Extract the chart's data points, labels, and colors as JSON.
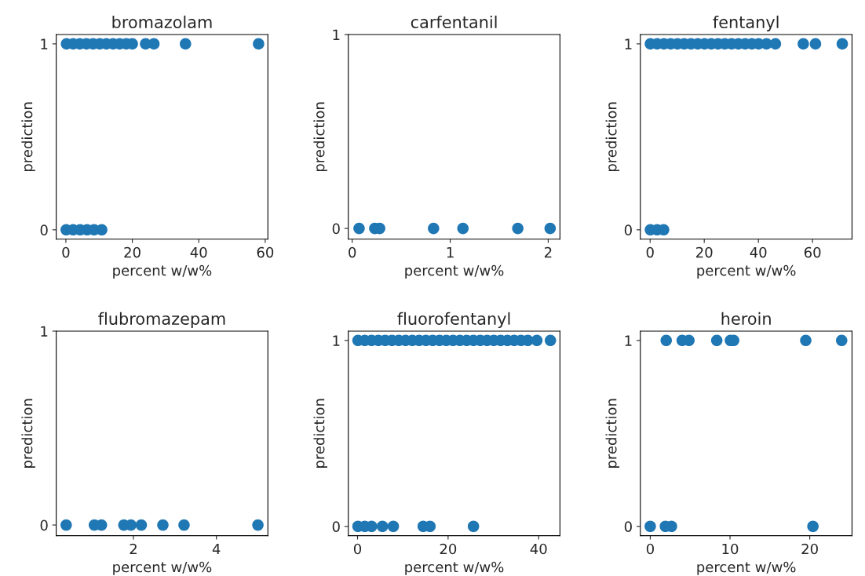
{
  "chart_data": [
    {
      "type": "scatter",
      "title": "bromazolam",
      "xlabel": "percent w/w%",
      "ylabel": "prediction",
      "color": "#1f77b4",
      "marker": "circle",
      "xlim": [
        -2.9,
        60.8
      ],
      "xticks": [
        0,
        20,
        40,
        60
      ],
      "ylim": [
        -0.05,
        1.05
      ],
      "yticks": [
        0,
        1
      ],
      "x": [
        0.2,
        2.2,
        4.2,
        6.2,
        8.2,
        10.2,
        12.2,
        14.2,
        16.2,
        18.2,
        20,
        24,
        26.5,
        36,
        58,
        0.1,
        2.2,
        4.3,
        6.4,
        8.5,
        10.8
      ],
      "values": [
        1,
        1,
        1,
        1,
        1,
        1,
        1,
        1,
        1,
        1,
        1,
        1,
        1,
        1,
        1,
        0,
        0,
        0,
        0,
        0,
        0
      ]
    },
    {
      "type": "scatter",
      "title": "carfentanil",
      "xlabel": "percent w/w%",
      "ylabel": "prediction",
      "color": "#1f77b4",
      "marker": "circle",
      "xlim": [
        -0.04,
        2.12
      ],
      "xticks": [
        0,
        1,
        2
      ],
      "ylim": [
        -0.055,
        1.0
      ],
      "yticks": [
        0,
        1
      ],
      "x": [
        0.07,
        0.23,
        0.28,
        0.83,
        1.13,
        1.69,
        2.02
      ],
      "values": [
        0,
        0,
        0,
        0,
        0,
        0,
        0
      ]
    },
    {
      "type": "scatter",
      "title": "fentanyl",
      "xlabel": "percent w/w%",
      "ylabel": "prediction",
      "color": "#1f77b4",
      "marker": "circle",
      "xlim": [
        -3.6,
        74.6
      ],
      "xticks": [
        0,
        20,
        40,
        60
      ],
      "ylim": [
        -0.05,
        1.05
      ],
      "yticks": [
        0,
        1
      ],
      "x": [
        0.1,
        2.6,
        5.1,
        7.6,
        10.1,
        12.6,
        15.1,
        17.6,
        20.1,
        22.6,
        25.1,
        27.6,
        30.1,
        32.6,
        35.1,
        37.6,
        40.1,
        43,
        46.3,
        56.6,
        61.1,
        71,
        0.1,
        2.6,
        5
      ],
      "values": [
        1,
        1,
        1,
        1,
        1,
        1,
        1,
        1,
        1,
        1,
        1,
        1,
        1,
        1,
        1,
        1,
        1,
        1,
        1,
        1,
        1,
        1,
        0,
        0,
        0
      ]
    },
    {
      "type": "scatter",
      "title": "flubromazepam",
      "xlabel": "percent w/w%",
      "ylabel": "prediction",
      "color": "#1f77b4",
      "marker": "circle",
      "xlim": [
        0.14,
        5.24
      ],
      "xticks": [
        2,
        4
      ],
      "ylim": [
        -0.055,
        1.0
      ],
      "yticks": [
        0,
        1
      ],
      "x": [
        0.38,
        1.06,
        1.23,
        1.77,
        1.94,
        2.19,
        2.71,
        3.22,
        5.0
      ],
      "values": [
        0,
        0,
        0,
        0,
        0,
        0,
        0,
        0,
        0
      ]
    },
    {
      "type": "scatter",
      "title": "fluorofentanyl",
      "xlabel": "percent w/w%",
      "ylabel": "prediction",
      "color": "#1f77b4",
      "marker": "circle",
      "xlim": [
        -2.04,
        44.7
      ],
      "xticks": [
        0,
        20,
        40
      ],
      "ylim": [
        -0.05,
        1.05
      ],
      "yticks": [
        0,
        1
      ],
      "x": [
        0.1,
        1.6,
        3.1,
        4.6,
        6.1,
        7.6,
        9.1,
        10.6,
        12.1,
        13.6,
        15.1,
        16.6,
        18.1,
        19.6,
        21.1,
        22.6,
        24.1,
        25.6,
        27.1,
        28.6,
        30.1,
        31.6,
        33.1,
        34.6,
        36.1,
        37.6,
        39.6,
        42.6,
        0.1,
        1.6,
        3.1,
        5.5,
        7.9,
        14.5,
        16,
        25.6
      ],
      "values": [
        1,
        1,
        1,
        1,
        1,
        1,
        1,
        1,
        1,
        1,
        1,
        1,
        1,
        1,
        1,
        1,
        1,
        1,
        1,
        1,
        1,
        1,
        1,
        1,
        1,
        1,
        1,
        1,
        0,
        0,
        0,
        0,
        0,
        0,
        0,
        0
      ]
    },
    {
      "type": "scatter",
      "title": "heroin",
      "xlabel": "percent w/w%",
      "ylabel": "prediction",
      "color": "#1f77b4",
      "marker": "circle",
      "xlim": [
        -1.24,
        25.3
      ],
      "xticks": [
        0,
        10,
        20
      ],
      "ylim": [
        -0.05,
        1.05
      ],
      "yticks": [
        0,
        1
      ],
      "x": [
        2.0,
        4.0,
        4.85,
        8.34,
        10.05,
        10.46,
        19.5,
        24.0,
        0.0,
        1.9,
        2.66,
        20.4
      ],
      "values": [
        1,
        1,
        1,
        1,
        1,
        1,
        1,
        1,
        0,
        0,
        0,
        0
      ]
    }
  ]
}
